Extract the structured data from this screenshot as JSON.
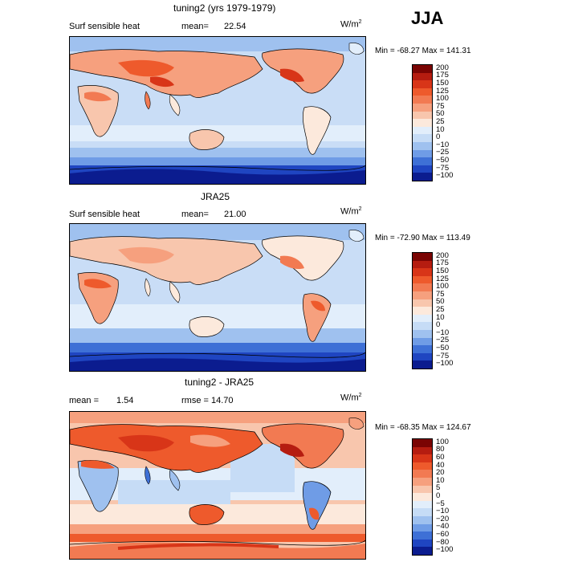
{
  "season": "JJA",
  "panels": [
    {
      "title": "tuning2 (yrs 1979-1979)",
      "left_label": "Surf sensible heat",
      "stat_label": "mean=",
      "stat_value": "22.54",
      "stat2": "",
      "units": "W/m",
      "units_sup": "2",
      "minmax": "Min = -68.27  Max = 141.31",
      "colorbar": [
        "200",
        "175",
        "150",
        "125",
        "100",
        "75",
        "50",
        "25",
        "10",
        "0",
        "−10",
        "−25",
        "−50",
        "−75",
        "−100"
      ],
      "colors": [
        "#7a0403",
        "#b51c10",
        "#d83518",
        "#ee5a2c",
        "#f27a52",
        "#f6a07e",
        "#f8c6ad",
        "#fce9dc",
        "#e2eefb",
        "#c6dcf6",
        "#9fc1ef",
        "#6f9ce6",
        "#3e70d6",
        "#1f45c1",
        "#0b1c8f"
      ]
    },
    {
      "title": "JRA25",
      "left_label": "Surf sensible heat",
      "stat_label": "mean=",
      "stat_value": "21.00",
      "stat2": "",
      "units": "W/m",
      "units_sup": "2",
      "minmax": "Min = -72.90  Max = 113.49",
      "colorbar": [
        "200",
        "175",
        "150",
        "125",
        "100",
        "75",
        "50",
        "25",
        "10",
        "0",
        "−10",
        "−25",
        "−50",
        "−75",
        "−100"
      ],
      "colors": [
        "#7a0403",
        "#b51c10",
        "#d83518",
        "#ee5a2c",
        "#f27a52",
        "#f6a07e",
        "#f8c6ad",
        "#fce9dc",
        "#e2eefb",
        "#c6dcf6",
        "#9fc1ef",
        "#6f9ce6",
        "#3e70d6",
        "#1f45c1",
        "#0b1c8f"
      ]
    },
    {
      "title": "tuning2 - JRA25",
      "left_label": "mean =",
      "stat_label": "",
      "stat_value": "1.54",
      "stat2": "rmse =    14.70",
      "units": "W/m",
      "units_sup": "2",
      "minmax": "Min = -68.35  Max = 124.67",
      "colorbar": [
        "100",
        "80",
        "60",
        "40",
        "20",
        "10",
        "5",
        "0",
        "−5",
        "−10",
        "−20",
        "−40",
        "−60",
        "−80",
        "−100"
      ],
      "colors": [
        "#7a0403",
        "#b51c10",
        "#d83518",
        "#ee5a2c",
        "#f27a52",
        "#f6a07e",
        "#f8c6ad",
        "#fce9dc",
        "#e2eefb",
        "#c6dcf6",
        "#9fc1ef",
        "#6f9ce6",
        "#3e70d6",
        "#1f45c1",
        "#0b1c8f"
      ]
    }
  ]
}
